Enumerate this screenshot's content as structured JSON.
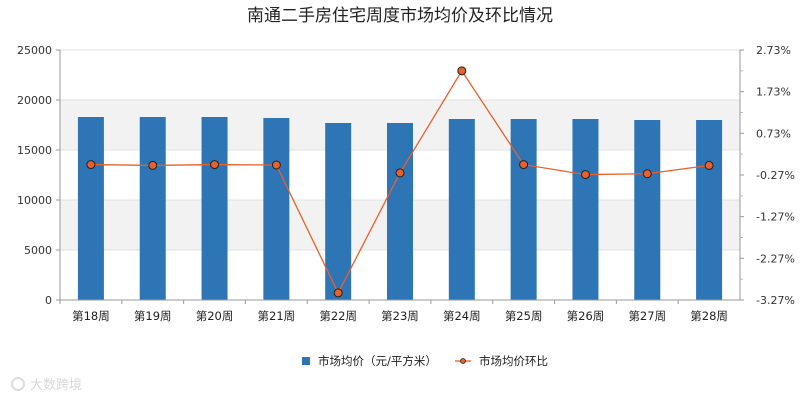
{
  "chart_data": {
    "type": "bar",
    "title": "南通二手房住宅周度市场均价及环比情况",
    "categories": [
      "第18周",
      "第19周",
      "第20周",
      "第21周",
      "第22周",
      "第23周",
      "第24周",
      "第25周",
      "第26周",
      "第27周",
      "第28周"
    ],
    "series": [
      {
        "name": "市场均价（元/平方米）",
        "type": "bar",
        "axis": "left",
        "color": "#2e75b6",
        "values": [
          18300,
          18300,
          18300,
          18200,
          17700,
          17700,
          18100,
          18100,
          18100,
          18000,
          18000
        ]
      },
      {
        "name": "市场均价环比",
        "type": "line",
        "axis": "right",
        "color": "#e8602c",
        "marker_color": "#c0392b",
        "values": [
          -0.02,
          -0.04,
          -0.02,
          -0.03,
          -3.1,
          -0.22,
          2.23,
          -0.02,
          -0.26,
          -0.24,
          -0.04
        ]
      }
    ],
    "y_left": {
      "min": 0,
      "max": 25000,
      "ticks": [
        0,
        5000,
        10000,
        15000,
        20000,
        25000
      ],
      "tick_labels": [
        "0",
        "5000",
        "10000",
        "15000",
        "20000",
        "25000"
      ]
    },
    "y_right": {
      "min": -3.27,
      "max": 2.73,
      "ticks": [
        -3.27,
        -2.27,
        -1.27,
        -0.27,
        0.73,
        1.73,
        2.73
      ],
      "tick_labels": [
        "-3.27%",
        "-2.27%",
        "-1.27%",
        "-0.27%",
        "0.73%",
        "1.73%",
        "2.73%"
      ]
    },
    "grid": "alternating-bands",
    "legend_position": "bottom-center"
  },
  "watermark": "大数跨境"
}
